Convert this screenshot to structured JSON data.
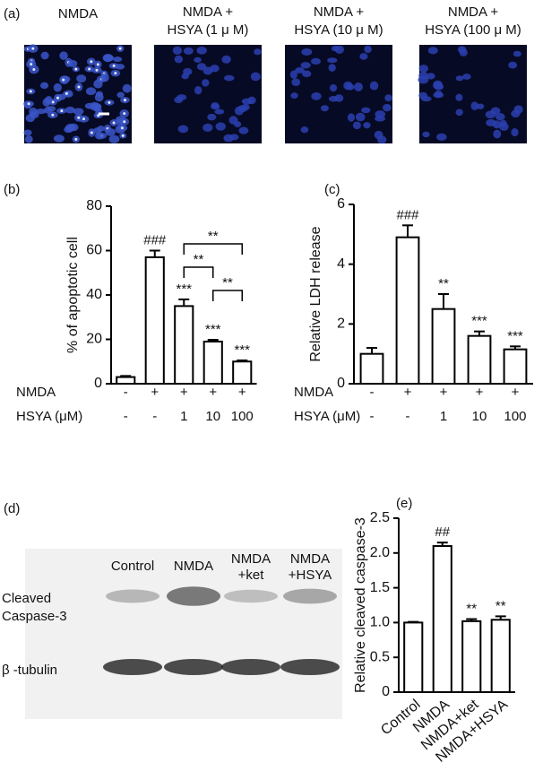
{
  "panel_a": {
    "label": "(a)",
    "images": [
      {
        "caption": [
          "NMDA"
        ]
      },
      {
        "caption": [
          "NMDA +",
          "HSYA (1 μ M)"
        ]
      },
      {
        "caption": [
          "NMDA +",
          "HSYA (10 μ M)"
        ]
      },
      {
        "caption": [
          "NMDA +",
          "HSYA (100 μ M)"
        ]
      }
    ]
  },
  "panel_d": {
    "label": "(d)",
    "lanes": [
      [
        "Control"
      ],
      [
        "NMDA"
      ],
      [
        "NMDA",
        "+ket"
      ],
      [
        "NMDA",
        "+HSYA"
      ]
    ],
    "rows": [
      [
        "Cleaved",
        "Caspase-3"
      ],
      [
        "β -tubulin"
      ]
    ]
  },
  "chart_data": [
    {
      "type": "bar",
      "panel_label": "(b)",
      "y_label": "% of apoptotic cell",
      "color": "#ffffff",
      "values": [
        3,
        57,
        35,
        19,
        10
      ],
      "errors": [
        0.5,
        3,
        3,
        0.8,
        0.5
      ],
      "annotations": [
        null,
        "###",
        "***",
        "***",
        "***"
      ],
      "brackets": [
        {
          "from": 2,
          "to": 4,
          "label": "**"
        },
        {
          "from": 2,
          "to": 3,
          "label": "**"
        },
        {
          "from": 3,
          "to": 4,
          "label": "**"
        }
      ],
      "conditions": [
        {
          "label": "NMDA",
          "values": [
            "-",
            "+",
            "+",
            "+",
            "+"
          ]
        },
        {
          "label": "HSYA (μM)",
          "values": [
            "-",
            "-",
            "1",
            "10",
            "100"
          ]
        }
      ],
      "ylim": [
        0,
        80
      ],
      "yticks": [
        0,
        20,
        40,
        60,
        80
      ]
    },
    {
      "type": "bar",
      "panel_label": "(c)",
      "y_label": "Relative LDH release",
      "color": "#ffffff",
      "values": [
        1.0,
        4.9,
        2.5,
        1.6,
        1.15
      ],
      "errors": [
        0.2,
        0.4,
        0.5,
        0.15,
        0.1
      ],
      "annotations": [
        null,
        "###",
        "**",
        "***",
        "***"
      ],
      "conditions": [
        {
          "label": "NMDA",
          "values": [
            "-",
            "+",
            "+",
            "+",
            "+"
          ]
        },
        {
          "label": "HSYA (μM)",
          "values": [
            "-",
            "-",
            "1",
            "10",
            "100"
          ]
        }
      ],
      "ylim": [
        0,
        6
      ],
      "yticks": [
        0,
        2,
        4,
        6
      ]
    },
    {
      "type": "bar",
      "panel_label": "(e)",
      "y_label": "Relative cleaved caspase-3",
      "color": "#ffffff",
      "categories": [
        "Control",
        "NMDA",
        "NMDA+ket",
        "NMDA+HSYA"
      ],
      "values": [
        1.0,
        2.1,
        1.02,
        1.04
      ],
      "errors": [
        0.01,
        0.05,
        0.03,
        0.05
      ],
      "annotations": [
        null,
        "##",
        "**",
        "**"
      ],
      "ylim": [
        0,
        2.5
      ],
      "yticks": [
        0,
        0.5,
        {
          "value": 1,
          "label": "1.0"
        },
        1.5,
        {
          "value": 2,
          "label": "2.0"
        },
        2.5
      ]
    }
  ]
}
